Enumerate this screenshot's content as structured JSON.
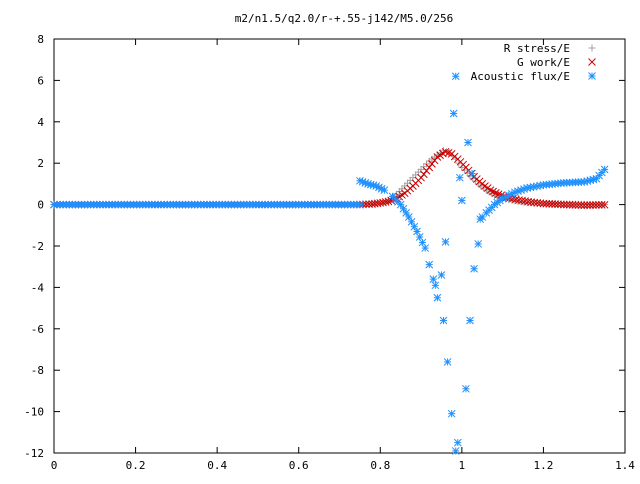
{
  "chart_data": {
    "type": "scatter",
    "title": "m2/n1.5/q2.0/r-+.55-j142/M5.0/256",
    "xlabel": "",
    "ylabel": "",
    "xlim": [
      0,
      1.4
    ],
    "ylim": [
      -12,
      8
    ],
    "grid": false,
    "legend_position": "top-right",
    "x_ticks": [
      "0",
      "0.2",
      "0.4",
      "0.6",
      "0.8",
      "1",
      "1.2",
      "1.4"
    ],
    "y_ticks": [
      "8",
      "6",
      "4",
      "2",
      "0",
      "-2",
      "-4",
      "-6",
      "-8",
      "-10",
      "-12"
    ],
    "series": [
      {
        "name": "R stress/E",
        "marker": "plus",
        "color": "#a0a0a0",
        "points": [
          [
            0.0,
            0
          ],
          [
            0.7,
            0
          ],
          [
            0.75,
            0
          ],
          [
            0.78,
            0.02
          ],
          [
            0.8,
            0.05
          ],
          [
            0.82,
            0.2
          ],
          [
            0.84,
            0.5
          ],
          [
            0.86,
            0.9
          ],
          [
            0.88,
            1.3
          ],
          [
            0.9,
            1.7
          ],
          [
            0.92,
            2.1
          ],
          [
            0.94,
            2.4
          ],
          [
            0.955,
            2.6
          ],
          [
            0.97,
            2.5
          ],
          [
            0.985,
            2.2
          ],
          [
            1.0,
            1.8
          ],
          [
            1.02,
            1.4
          ],
          [
            1.04,
            1.0
          ],
          [
            1.06,
            0.7
          ],
          [
            1.08,
            0.45
          ],
          [
            1.1,
            0.3
          ],
          [
            1.13,
            0.18
          ],
          [
            1.16,
            0.1
          ],
          [
            1.2,
            0.06
          ],
          [
            1.25,
            0.03
          ],
          [
            1.3,
            0.01
          ],
          [
            1.35,
            0.0
          ]
        ]
      },
      {
        "name": "G work/E",
        "marker": "cross",
        "color": "#cc0000",
        "points": [
          [
            0.0,
            0
          ],
          [
            0.7,
            0
          ],
          [
            0.75,
            0
          ],
          [
            0.78,
            0.03
          ],
          [
            0.8,
            0.08
          ],
          [
            0.82,
            0.15
          ],
          [
            0.84,
            0.3
          ],
          [
            0.86,
            0.55
          ],
          [
            0.88,
            0.9
          ],
          [
            0.9,
            1.3
          ],
          [
            0.92,
            1.8
          ],
          [
            0.94,
            2.3
          ],
          [
            0.96,
            2.55
          ],
          [
            0.975,
            2.45
          ],
          [
            0.99,
            2.2
          ],
          [
            1.01,
            1.8
          ],
          [
            1.03,
            1.35
          ],
          [
            1.05,
            1.0
          ],
          [
            1.07,
            0.7
          ],
          [
            1.09,
            0.5
          ],
          [
            1.11,
            0.35
          ],
          [
            1.14,
            0.22
          ],
          [
            1.17,
            0.12
          ],
          [
            1.2,
            0.05
          ],
          [
            1.25,
            0.0
          ],
          [
            1.3,
            -0.03
          ],
          [
            1.35,
            -0.01
          ]
        ]
      },
      {
        "name": "Acoustic flux/E",
        "marker": "star",
        "color": "#1e90ff",
        "points": [
          [
            0.0,
            0
          ],
          [
            0.7,
            0
          ],
          [
            0.75,
            1.15
          ],
          [
            0.77,
            1.0
          ],
          [
            0.79,
            0.9
          ],
          [
            0.81,
            0.7
          ],
          [
            0.83,
            0.4
          ],
          [
            0.85,
            0.0
          ],
          [
            0.87,
            -0.6
          ],
          [
            0.89,
            -1.3
          ],
          [
            0.91,
            -2.1
          ],
          [
            0.92,
            -2.9
          ],
          [
            0.93,
            -3.6
          ],
          [
            0.935,
            -3.9
          ],
          [
            0.94,
            -4.5
          ],
          [
            0.95,
            -3.4
          ],
          [
            0.955,
            -5.6
          ],
          [
            0.96,
            -1.8
          ],
          [
            0.965,
            -7.6
          ],
          [
            0.975,
            -10.1
          ],
          [
            0.985,
            -11.9
          ],
          [
            0.99,
            -11.5
          ],
          [
            0.98,
            4.4
          ],
          [
            0.985,
            6.2
          ],
          [
            0.995,
            1.3
          ],
          [
            1.0,
            0.2
          ],
          [
            1.01,
            -8.9
          ],
          [
            1.015,
            3.0
          ],
          [
            1.02,
            -5.6
          ],
          [
            1.025,
            1.5
          ],
          [
            1.03,
            -3.1
          ],
          [
            1.04,
            -1.9
          ],
          [
            1.045,
            -0.7
          ],
          [
            1.05,
            -0.6
          ],
          [
            1.06,
            -0.4
          ],
          [
            1.08,
            0.0
          ],
          [
            1.1,
            0.3
          ],
          [
            1.13,
            0.6
          ],
          [
            1.16,
            0.8
          ],
          [
            1.2,
            0.95
          ],
          [
            1.25,
            1.05
          ],
          [
            1.3,
            1.1
          ],
          [
            1.33,
            1.25
          ],
          [
            1.35,
            1.7
          ]
        ]
      }
    ]
  }
}
